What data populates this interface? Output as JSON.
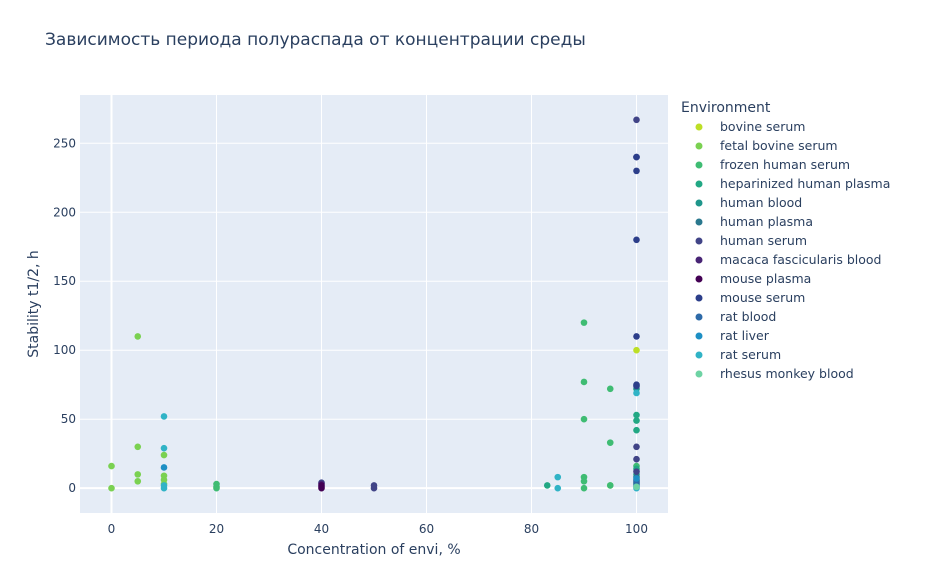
{
  "chart_data": {
    "type": "scatter",
    "title": "Зависимость периода полураспада от концентрации среды",
    "xlabel": "Concentration of envi, %",
    "ylabel": "Stability t1/2, h",
    "xlim": [
      -6,
      106
    ],
    "ylim": [
      -18,
      285
    ],
    "xticks": [
      0,
      20,
      40,
      60,
      80,
      100
    ],
    "yticks": [
      0,
      50,
      100,
      150,
      200,
      250
    ],
    "grid": true,
    "legend_title": "Environment",
    "legend_position": "right",
    "series": [
      {
        "name": "bovine serum",
        "color": "#bddf26",
        "points": [
          [
            100,
            100
          ]
        ]
      },
      {
        "name": "fetal bovine serum",
        "color": "#7ad151",
        "points": [
          [
            0,
            16
          ],
          [
            0,
            0
          ],
          [
            5,
            110
          ],
          [
            5,
            30
          ],
          [
            5,
            10
          ],
          [
            5,
            5
          ],
          [
            10,
            24
          ],
          [
            10,
            9
          ],
          [
            10,
            6
          ],
          [
            10,
            3
          ],
          [
            95,
            2
          ]
        ]
      },
      {
        "name": "frozen human serum",
        "color": "#3fbc73",
        "points": [
          [
            20,
            3
          ],
          [
            20,
            1
          ],
          [
            20,
            0
          ],
          [
            90,
            120
          ],
          [
            90,
            77
          ],
          [
            90,
            50
          ],
          [
            90,
            8
          ],
          [
            90,
            5
          ],
          [
            90,
            0
          ],
          [
            95,
            72
          ],
          [
            95,
            33
          ],
          [
            95,
            2
          ],
          [
            100,
            16
          ]
        ]
      },
      {
        "name": "heparinized human plasma",
        "color": "#22a884",
        "points": [
          [
            83,
            2
          ],
          [
            100,
            53
          ],
          [
            100,
            49
          ],
          [
            100,
            42
          ],
          [
            100,
            14
          ],
          [
            100,
            10
          ]
        ]
      },
      {
        "name": "human blood",
        "color": "#1f968b",
        "points": [
          [
            100,
            72
          ],
          [
            100,
            3
          ]
        ]
      },
      {
        "name": "human plasma",
        "color": "#2a788e",
        "points": [
          [
            100,
            8
          ],
          [
            100,
            4
          ]
        ]
      },
      {
        "name": "human serum",
        "color": "#414487",
        "points": [
          [
            40,
            4
          ],
          [
            50,
            2
          ],
          [
            50,
            0
          ],
          [
            100,
            267
          ],
          [
            100,
            240
          ],
          [
            100,
            30
          ],
          [
            100,
            21
          ],
          [
            100,
            12
          ],
          [
            100,
            6
          ]
        ]
      },
      {
        "name": "macaca fascicularis blood",
        "color": "#482475",
        "points": [
          [
            40,
            3
          ],
          [
            40,
            1
          ]
        ]
      },
      {
        "name": "mouse plasma",
        "color": "#440154",
        "points": [
          [
            40,
            2
          ],
          [
            40,
            0
          ]
        ]
      },
      {
        "name": "mouse serum",
        "color": "#2c3e8a",
        "points": [
          [
            100,
            240
          ],
          [
            100,
            230
          ],
          [
            100,
            180
          ],
          [
            100,
            110
          ],
          [
            100,
            75
          ],
          [
            100,
            74
          ]
        ]
      },
      {
        "name": "rat blood",
        "color": "#2d6aa8",
        "points": [
          [
            100,
            5
          ],
          [
            100,
            2
          ]
        ]
      },
      {
        "name": "rat liver",
        "color": "#1d8fc4",
        "points": [
          [
            10,
            15
          ],
          [
            100,
            7
          ],
          [
            100,
            1
          ]
        ]
      },
      {
        "name": "rat serum",
        "color": "#30b3c6",
        "points": [
          [
            10,
            52
          ],
          [
            10,
            29
          ],
          [
            10,
            2
          ],
          [
            10,
            0
          ],
          [
            85,
            8
          ],
          [
            85,
            0
          ],
          [
            100,
            69
          ],
          [
            100,
            0
          ]
        ]
      },
      {
        "name": "rhesus monkey blood",
        "color": "#6ed3a4",
        "points": [
          [
            100,
            1
          ]
        ]
      }
    ]
  }
}
